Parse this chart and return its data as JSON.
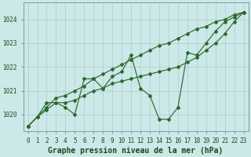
{
  "title": "Graphe pression niveau de la mer (hPa)",
  "x_hours": [
    0,
    1,
    2,
    3,
    4,
    5,
    6,
    7,
    8,
    9,
    10,
    11,
    12,
    13,
    14,
    15,
    16,
    17,
    18,
    19,
    20,
    21,
    22,
    23
  ],
  "line_top": [
    1019.5,
    1019.9,
    1020.3,
    1020.7,
    1020.8,
    1021.0,
    1021.2,
    1021.5,
    1021.7,
    1021.9,
    1022.1,
    1022.3,
    1022.5,
    1022.7,
    1022.9,
    1023.0,
    1023.2,
    1023.4,
    1023.6,
    1023.7,
    1023.9,
    1024.0,
    1024.2,
    1024.3
  ],
  "line_mid": [
    1019.5,
    1019.9,
    1020.2,
    1020.5,
    1020.5,
    1020.6,
    1020.8,
    1021.0,
    1021.1,
    1021.3,
    1021.4,
    1021.5,
    1021.6,
    1021.7,
    1021.8,
    1021.9,
    1022.0,
    1022.2,
    1022.4,
    1022.7,
    1023.0,
    1023.4,
    1023.9,
    1024.3
  ],
  "line_zigzag": [
    1019.5,
    1019.9,
    1020.5,
    1020.5,
    1020.3,
    1020.0,
    1021.5,
    1021.5,
    1021.1,
    1021.6,
    1021.8,
    1022.5,
    1021.1,
    1020.8,
    1019.8,
    1019.8,
    1020.3,
    1022.6,
    1022.5,
    1023.0,
    1023.5,
    1023.9,
    1024.1,
    1024.3
  ],
  "ylim": [
    1019.3,
    1024.7
  ],
  "yticks": [
    1020,
    1021,
    1022,
    1023,
    1024
  ],
  "line_color": "#2d6a2d",
  "bg_color": "#cce8e8",
  "grid_color": "#aacece",
  "label_color": "#1a4a1a",
  "title_fontsize": 7.0,
  "tick_fontsize": 5.5
}
